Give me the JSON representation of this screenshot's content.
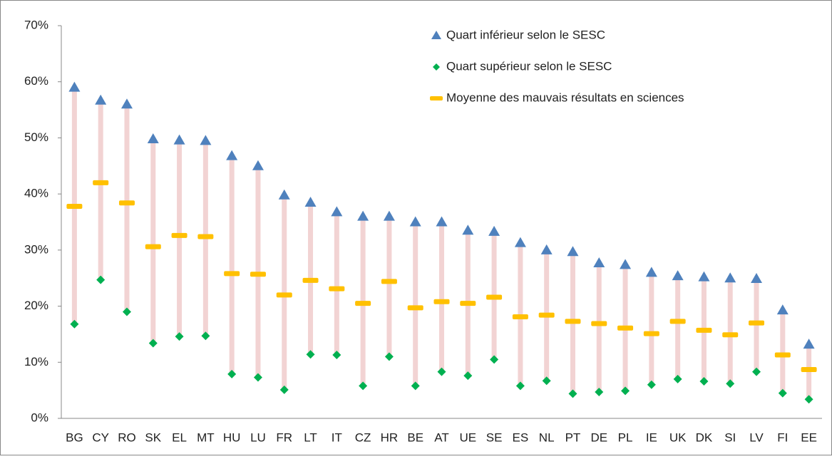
{
  "chart_data": {
    "type": "range-dot",
    "categories": [
      "BG",
      "CY",
      "RO",
      "SK",
      "EL",
      "MT",
      "HU",
      "LU",
      "FR",
      "LT",
      "IT",
      "CZ",
      "HR",
      "BE",
      "AT",
      "UE",
      "SE",
      "ES",
      "NL",
      "PT",
      "DE",
      "PL",
      "IE",
      "UK",
      "DK",
      "SI",
      "LV",
      "FI",
      "EE"
    ],
    "series": [
      {
        "name": "Quart inférieur selon le SESC",
        "color": "#4f81bd",
        "marker": "triangle",
        "values": [
          59,
          56.7,
          56,
          49.8,
          49.6,
          49.5,
          46.8,
          45,
          39.8,
          38.5,
          36.8,
          36,
          36,
          35,
          35,
          33.5,
          33.3,
          31.3,
          30,
          29.7,
          27.7,
          27.4,
          26,
          25.4,
          25.2,
          25,
          24.9,
          19.3,
          13.2
        ]
      },
      {
        "name": "Quart supérieur selon le SESC",
        "color": "#00b050",
        "marker": "diamond",
        "values": [
          16.8,
          24.7,
          19,
          13.4,
          14.6,
          14.7,
          7.9,
          7.3,
          5.1,
          11.4,
          11.3,
          5.8,
          11,
          5.8,
          8.3,
          7.6,
          10.5,
          5.8,
          6.7,
          4.4,
          4.7,
          4.9,
          6,
          7,
          6.6,
          6.2,
          8.3,
          4.5,
          3.4
        ]
      },
      {
        "name": "Moyenne des mauvais résultats en sciences",
        "color": "#ffc000",
        "marker": "dash",
        "values": [
          37.8,
          42,
          38.4,
          30.6,
          32.6,
          32.4,
          25.8,
          25.7,
          22,
          24.6,
          23.1,
          20.5,
          24.4,
          19.7,
          20.8,
          20.5,
          21.6,
          18.1,
          18.4,
          17.3,
          16.9,
          16.1,
          15.1,
          17.3,
          15.7,
          14.9,
          17,
          11.3,
          8.7
        ]
      }
    ],
    "range_color": "#f2d3d3",
    "ylim": [
      0,
      70
    ],
    "yticks": [
      {
        "value": 0,
        "label": "0%"
      },
      {
        "value": 10,
        "label": "10%"
      },
      {
        "value": 20,
        "label": "20%"
      },
      {
        "value": 30,
        "label": "30%"
      },
      {
        "value": 40,
        "label": "40%"
      },
      {
        "value": 50,
        "label": "50%"
      },
      {
        "value": 60,
        "label": "60%"
      },
      {
        "value": 70,
        "label": "70%"
      }
    ],
    "grid": false,
    "legend": "upper right"
  }
}
